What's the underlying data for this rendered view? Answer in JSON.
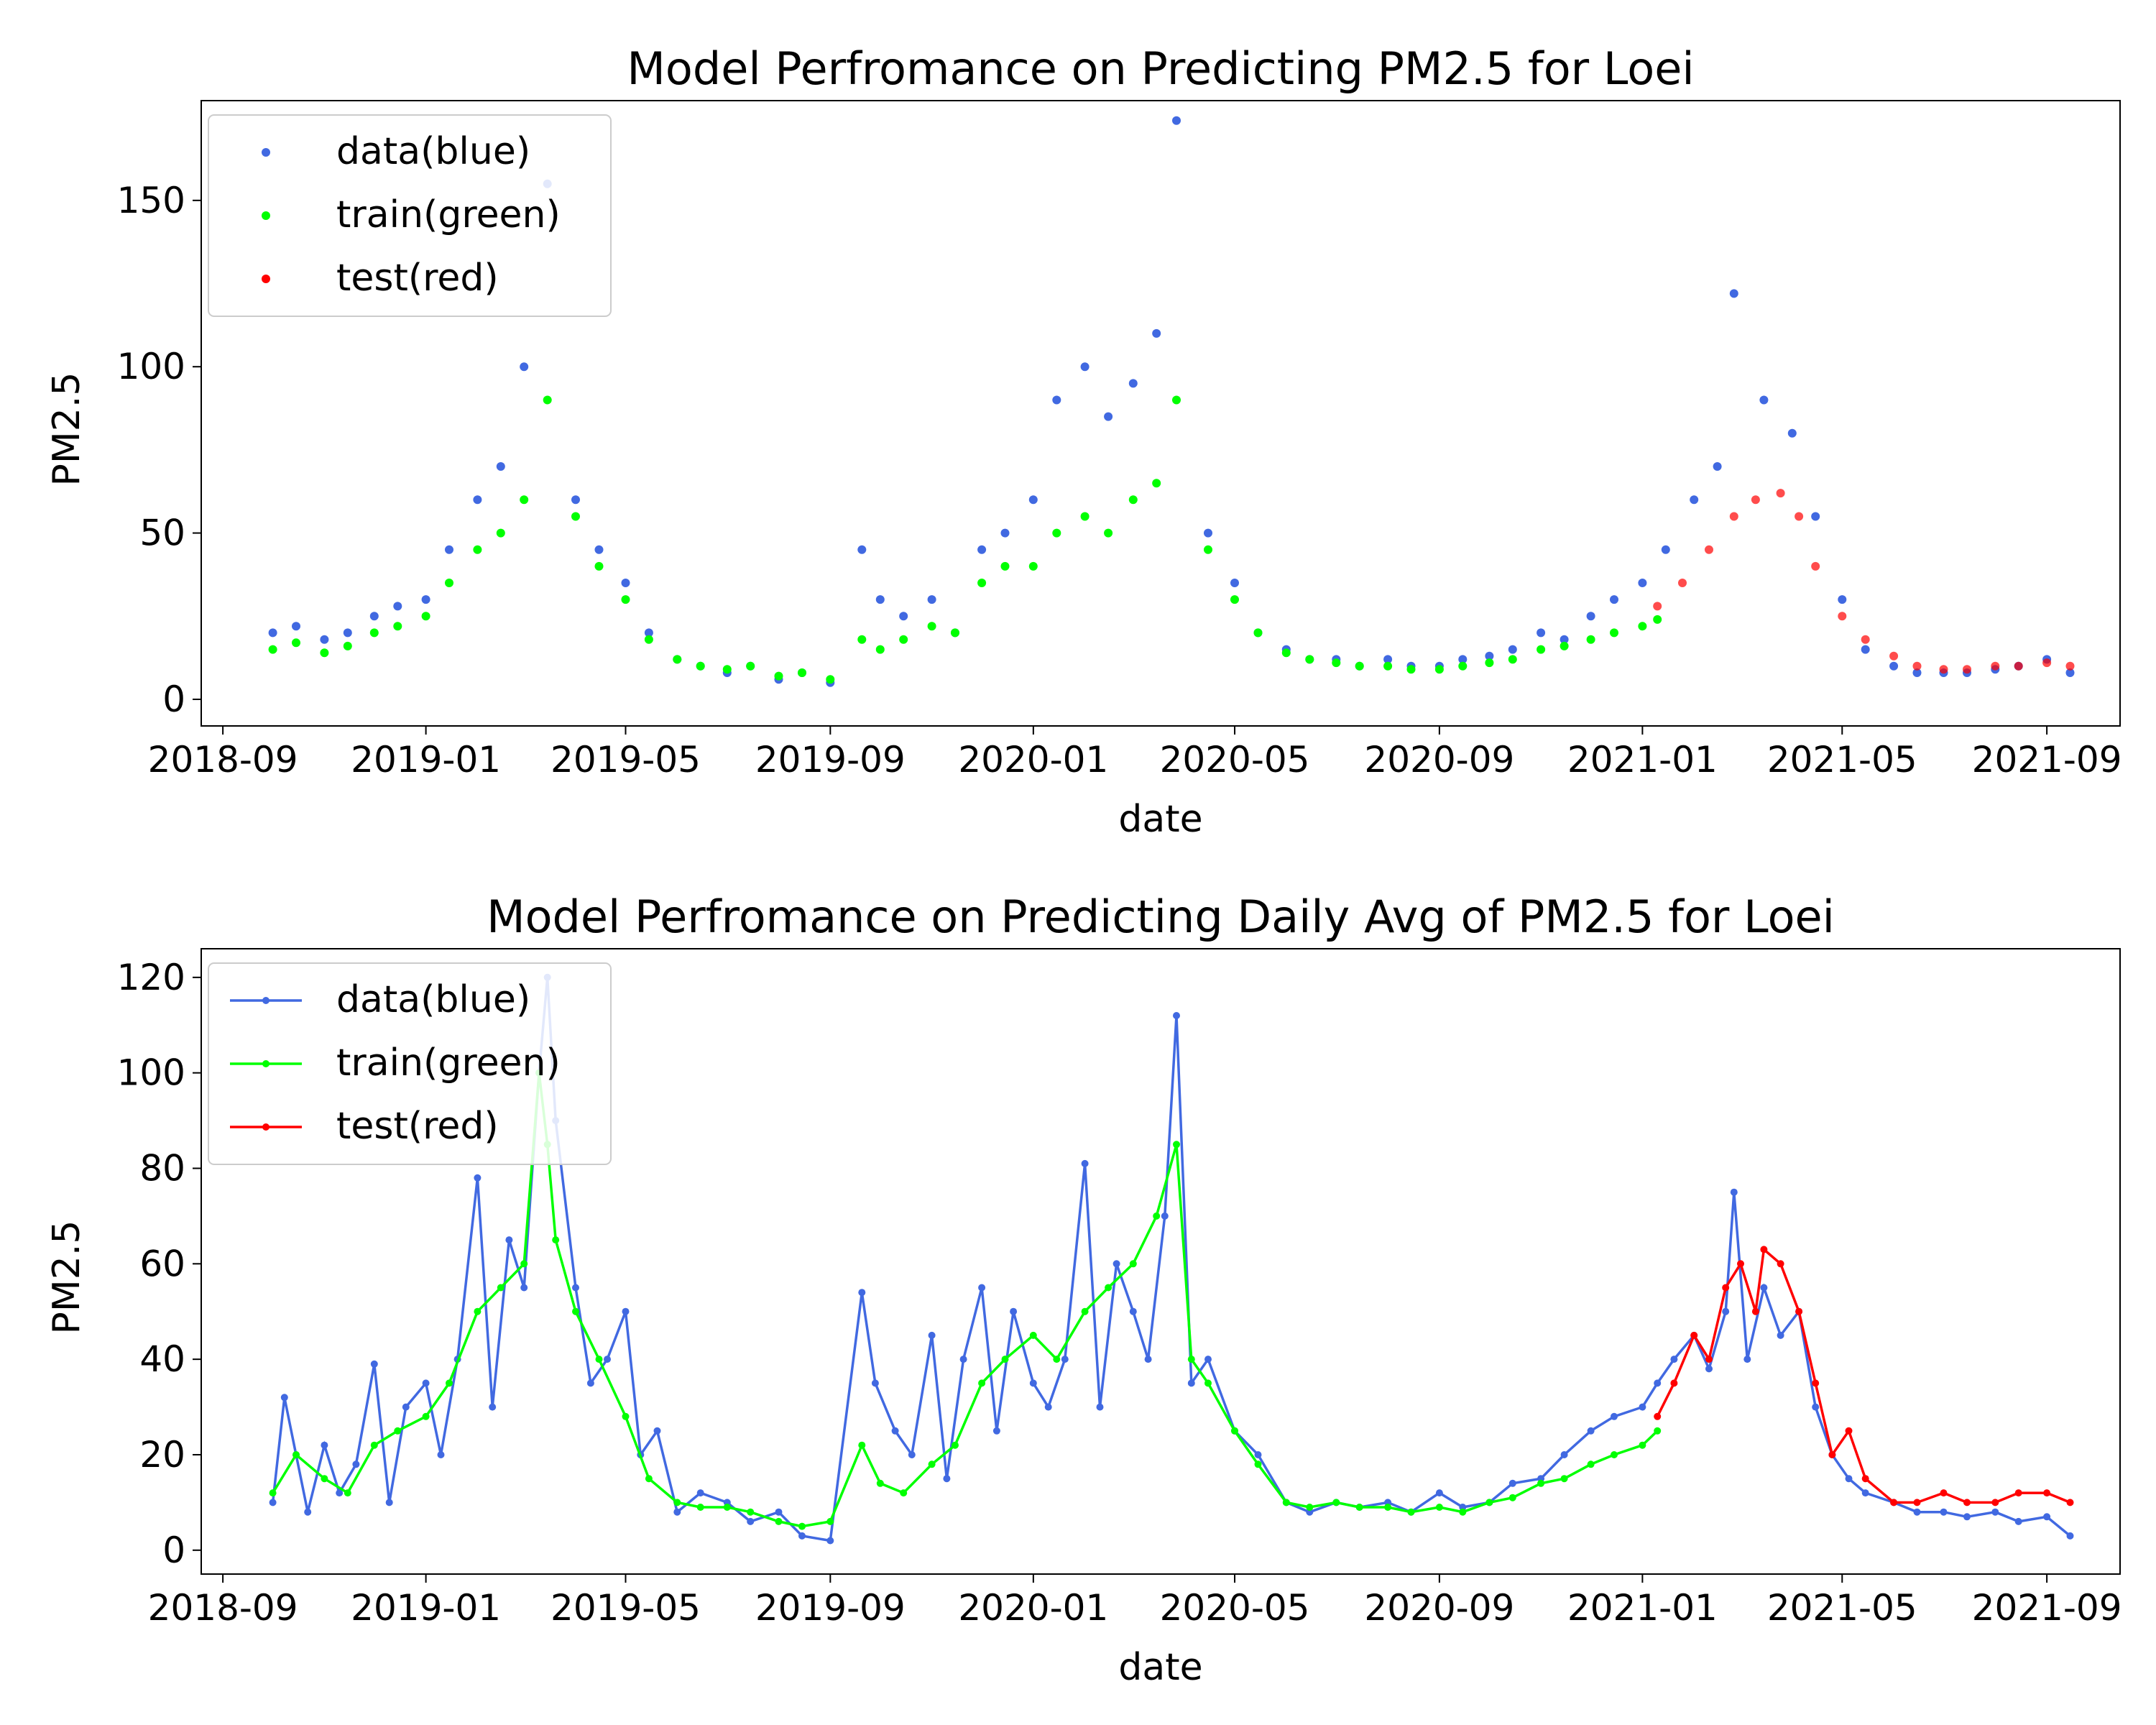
{
  "chart_data": [
    {
      "type": "scatter",
      "title": "Model Perfromance on Predicting PM2.5 for Loei",
      "xlabel": "date",
      "ylabel": "PM2.5",
      "x_range": [
        "2018-08-19",
        "2021-10-15"
      ],
      "ylim": [
        -8,
        180
      ],
      "x_ticks": [
        "2018-09",
        "2019-01",
        "2019-05",
        "2019-09",
        "2020-01",
        "2020-05",
        "2020-09",
        "2021-01",
        "2021-05",
        "2021-09"
      ],
      "y_ticks": [
        0,
        50,
        100,
        150
      ],
      "legend_position": "upper-left",
      "series": [
        {
          "name": "data(blue)",
          "color": "#4169e1",
          "marker": "dot",
          "x": [
            "2018-10-01",
            "2018-10-15",
            "2018-11-01",
            "2018-11-15",
            "2018-12-01",
            "2018-12-15",
            "2019-01-01",
            "2019-01-15",
            "2019-02-01",
            "2019-02-15",
            "2019-03-01",
            "2019-03-15",
            "2019-04-01",
            "2019-04-15",
            "2019-05-01",
            "2019-05-15",
            "2019-06-01",
            "2019-06-15",
            "2019-07-01",
            "2019-07-15",
            "2019-08-01",
            "2019-08-15",
            "2019-09-01",
            "2019-09-20",
            "2019-10-01",
            "2019-10-15",
            "2019-11-01",
            "2019-11-15",
            "2019-12-01",
            "2019-12-15",
            "2020-01-01",
            "2020-01-15",
            "2020-02-01",
            "2020-02-15",
            "2020-03-01",
            "2020-03-15",
            "2020-03-27",
            "2020-04-15",
            "2020-05-01",
            "2020-05-15",
            "2020-06-01",
            "2020-06-15",
            "2020-07-01",
            "2020-07-15",
            "2020-08-01",
            "2020-08-15",
            "2020-09-01",
            "2020-09-15",
            "2020-10-01",
            "2020-10-15",
            "2020-11-01",
            "2020-11-15",
            "2020-12-01",
            "2020-12-15",
            "2021-01-01",
            "2021-01-15",
            "2021-02-01",
            "2021-02-15",
            "2021-02-25",
            "2021-03-15",
            "2021-04-01",
            "2021-04-15",
            "2021-05-01",
            "2021-05-15",
            "2021-06-01",
            "2021-06-15",
            "2021-07-01",
            "2021-07-15",
            "2021-08-01",
            "2021-08-15",
            "2021-09-01",
            "2021-09-15"
          ],
          "y": [
            20,
            22,
            18,
            20,
            25,
            28,
            30,
            45,
            60,
            70,
            100,
            155,
            60,
            45,
            35,
            20,
            12,
            10,
            8,
            10,
            6,
            8,
            5,
            45,
            30,
            25,
            30,
            20,
            45,
            50,
            60,
            90,
            100,
            85,
            95,
            110,
            174,
            50,
            35,
            20,
            15,
            12,
            12,
            10,
            12,
            10,
            10,
            12,
            13,
            15,
            20,
            18,
            25,
            30,
            35,
            45,
            60,
            70,
            122,
            90,
            80,
            55,
            30,
            15,
            10,
            8,
            8,
            8,
            9,
            10,
            12,
            8
          ]
        },
        {
          "name": "train(green)",
          "color": "#00ff00",
          "marker": "dot",
          "x": [
            "2018-10-01",
            "2018-10-15",
            "2018-11-01",
            "2018-11-15",
            "2018-12-01",
            "2018-12-15",
            "2019-01-01",
            "2019-01-15",
            "2019-02-01",
            "2019-02-15",
            "2019-03-01",
            "2019-03-15",
            "2019-04-01",
            "2019-04-15",
            "2019-05-01",
            "2019-05-15",
            "2019-06-01",
            "2019-06-15",
            "2019-07-01",
            "2019-07-15",
            "2019-08-01",
            "2019-08-15",
            "2019-09-01",
            "2019-09-20",
            "2019-10-01",
            "2019-10-15",
            "2019-11-01",
            "2019-11-15",
            "2019-12-01",
            "2019-12-15",
            "2020-01-01",
            "2020-01-15",
            "2020-02-01",
            "2020-02-15",
            "2020-03-01",
            "2020-03-15",
            "2020-03-27",
            "2020-04-15",
            "2020-05-01",
            "2020-05-15",
            "2020-06-01",
            "2020-06-15",
            "2020-07-01",
            "2020-07-15",
            "2020-08-01",
            "2020-08-15",
            "2020-09-01",
            "2020-09-15",
            "2020-10-01",
            "2020-10-15",
            "2020-11-01",
            "2020-11-15",
            "2020-12-01",
            "2020-12-15",
            "2021-01-01",
            "2021-01-10"
          ],
          "y": [
            15,
            17,
            14,
            16,
            20,
            22,
            25,
            35,
            45,
            50,
            60,
            90,
            55,
            40,
            30,
            18,
            12,
            10,
            9,
            10,
            7,
            8,
            6,
            18,
            15,
            18,
            22,
            20,
            35,
            40,
            40,
            50,
            55,
            50,
            60,
            65,
            90,
            45,
            30,
            20,
            14,
            12,
            11,
            10,
            10,
            9,
            9,
            10,
            11,
            12,
            15,
            16,
            18,
            20,
            22,
            24
          ]
        },
        {
          "name": "test(red)",
          "color": "#ff0000",
          "marker": "dot",
          "x": [
            "2021-01-10",
            "2021-01-25",
            "2021-02-10",
            "2021-02-25",
            "2021-03-10",
            "2021-03-25",
            "2021-04-05",
            "2021-04-15",
            "2021-05-01",
            "2021-05-15",
            "2021-06-01",
            "2021-06-15",
            "2021-07-01",
            "2021-07-15",
            "2021-08-01",
            "2021-08-15",
            "2021-09-01",
            "2021-09-15"
          ],
          "y": [
            28,
            35,
            45,
            55,
            60,
            62,
            55,
            40,
            25,
            18,
            13,
            10,
            9,
            9,
            10,
            10,
            11,
            10
          ]
        }
      ]
    },
    {
      "type": "line",
      "title": "Model Perfromance on Predicting Daily Avg of PM2.5 for Loei",
      "xlabel": "date",
      "ylabel": "PM2.5",
      "x_range": [
        "2018-08-19",
        "2021-10-15"
      ],
      "ylim": [
        -5,
        126
      ],
      "x_ticks": [
        "2018-09",
        "2019-01",
        "2019-05",
        "2019-09",
        "2020-01",
        "2020-05",
        "2020-09",
        "2021-01",
        "2021-05",
        "2021-09"
      ],
      "y_ticks": [
        0,
        20,
        40,
        60,
        80,
        100,
        120
      ],
      "legend_position": "upper-left",
      "series": [
        {
          "name": "data(blue)",
          "color": "#4169e1",
          "marker": "dot",
          "x": [
            "2018-10-01",
            "2018-10-08",
            "2018-10-15",
            "2018-10-22",
            "2018-11-01",
            "2018-11-10",
            "2018-11-20",
            "2018-12-01",
            "2018-12-10",
            "2018-12-20",
            "2019-01-01",
            "2019-01-10",
            "2019-01-20",
            "2019-02-01",
            "2019-02-10",
            "2019-02-20",
            "2019-03-01",
            "2019-03-10",
            "2019-03-15",
            "2019-03-20",
            "2019-04-01",
            "2019-04-10",
            "2019-04-20",
            "2019-05-01",
            "2019-05-10",
            "2019-05-20",
            "2019-06-01",
            "2019-06-15",
            "2019-07-01",
            "2019-07-15",
            "2019-08-01",
            "2019-08-15",
            "2019-09-01",
            "2019-09-20",
            "2019-09-28",
            "2019-10-10",
            "2019-10-20",
            "2019-11-01",
            "2019-11-10",
            "2019-11-20",
            "2019-12-01",
            "2019-12-10",
            "2019-12-20",
            "2020-01-01",
            "2020-01-10",
            "2020-01-20",
            "2020-02-01",
            "2020-02-10",
            "2020-02-20",
            "2020-03-01",
            "2020-03-10",
            "2020-03-20",
            "2020-03-27",
            "2020-04-05",
            "2020-04-15",
            "2020-05-01",
            "2020-05-15",
            "2020-06-01",
            "2020-06-15",
            "2020-07-01",
            "2020-07-15",
            "2020-08-01",
            "2020-08-15",
            "2020-09-01",
            "2020-09-15",
            "2020-10-01",
            "2020-10-15",
            "2020-11-01",
            "2020-11-15",
            "2020-12-01",
            "2020-12-15",
            "2021-01-01",
            "2021-01-10",
            "2021-01-20",
            "2021-02-01",
            "2021-02-10",
            "2021-02-20",
            "2021-02-25",
            "2021-03-05",
            "2021-03-15",
            "2021-03-25",
            "2021-04-05",
            "2021-04-15",
            "2021-04-25",
            "2021-05-05",
            "2021-05-15",
            "2021-06-01",
            "2021-06-15",
            "2021-07-01",
            "2021-07-15",
            "2021-08-01",
            "2021-08-15",
            "2021-09-01",
            "2021-09-15"
          ],
          "y": [
            10,
            32,
            20,
            8,
            22,
            12,
            18,
            39,
            10,
            30,
            35,
            20,
            40,
            78,
            30,
            65,
            55,
            100,
            120,
            90,
            55,
            35,
            40,
            50,
            20,
            25,
            8,
            12,
            10,
            6,
            8,
            3,
            2,
            54,
            35,
            25,
            20,
            45,
            15,
            40,
            55,
            25,
            50,
            35,
            30,
            40,
            81,
            30,
            60,
            50,
            40,
            70,
            112,
            35,
            40,
            25,
            20,
            10,
            8,
            10,
            9,
            10,
            8,
            12,
            9,
            10,
            14,
            15,
            20,
            25,
            28,
            30,
            35,
            40,
            45,
            38,
            50,
            75,
            40,
            55,
            45,
            50,
            30,
            20,
            15,
            12,
            10,
            8,
            8,
            7,
            8,
            6,
            7,
            3
          ]
        },
        {
          "name": "train(green)",
          "color": "#00ff00",
          "marker": "dot",
          "x": [
            "2018-10-01",
            "2018-10-15",
            "2018-11-01",
            "2018-11-15",
            "2018-12-01",
            "2018-12-15",
            "2019-01-01",
            "2019-01-15",
            "2019-02-01",
            "2019-02-15",
            "2019-03-01",
            "2019-03-10",
            "2019-03-15",
            "2019-03-20",
            "2019-04-01",
            "2019-04-15",
            "2019-05-01",
            "2019-05-15",
            "2019-06-01",
            "2019-06-15",
            "2019-07-01",
            "2019-07-15",
            "2019-08-01",
            "2019-08-15",
            "2019-09-01",
            "2019-09-20",
            "2019-10-01",
            "2019-10-15",
            "2019-11-01",
            "2019-11-15",
            "2019-12-01",
            "2019-12-15",
            "2020-01-01",
            "2020-01-15",
            "2020-02-01",
            "2020-02-15",
            "2020-03-01",
            "2020-03-15",
            "2020-03-27",
            "2020-04-05",
            "2020-04-15",
            "2020-05-01",
            "2020-05-15",
            "2020-06-01",
            "2020-06-15",
            "2020-07-01",
            "2020-07-15",
            "2020-08-01",
            "2020-08-15",
            "2020-09-01",
            "2020-09-15",
            "2020-10-01",
            "2020-10-15",
            "2020-11-01",
            "2020-11-15",
            "2020-12-01",
            "2020-12-15",
            "2021-01-01",
            "2021-01-10"
          ],
          "y": [
            12,
            20,
            15,
            12,
            22,
            25,
            28,
            35,
            50,
            55,
            60,
            100,
            85,
            65,
            50,
            40,
            28,
            15,
            10,
            9,
            9,
            8,
            6,
            5,
            6,
            22,
            14,
            12,
            18,
            22,
            35,
            40,
            45,
            40,
            50,
            55,
            60,
            70,
            85,
            40,
            35,
            25,
            18,
            10,
            9,
            10,
            9,
            9,
            8,
            9,
            8,
            10,
            11,
            14,
            15,
            18,
            20,
            22,
            25
          ]
        },
        {
          "name": "test(red)",
          "color": "#ff0000",
          "marker": "dot",
          "x": [
            "2021-01-10",
            "2021-01-20",
            "2021-02-01",
            "2021-02-10",
            "2021-02-20",
            "2021-03-01",
            "2021-03-10",
            "2021-03-15",
            "2021-03-25",
            "2021-04-05",
            "2021-04-15",
            "2021-04-25",
            "2021-05-05",
            "2021-05-15",
            "2021-06-01",
            "2021-06-15",
            "2021-07-01",
            "2021-07-15",
            "2021-08-01",
            "2021-08-15",
            "2021-09-01",
            "2021-09-15"
          ],
          "y": [
            28,
            35,
            45,
            40,
            55,
            60,
            50,
            63,
            60,
            50,
            35,
            20,
            25,
            15,
            10,
            10,
            12,
            10,
            10,
            12,
            12,
            10
          ]
        }
      ]
    }
  ]
}
